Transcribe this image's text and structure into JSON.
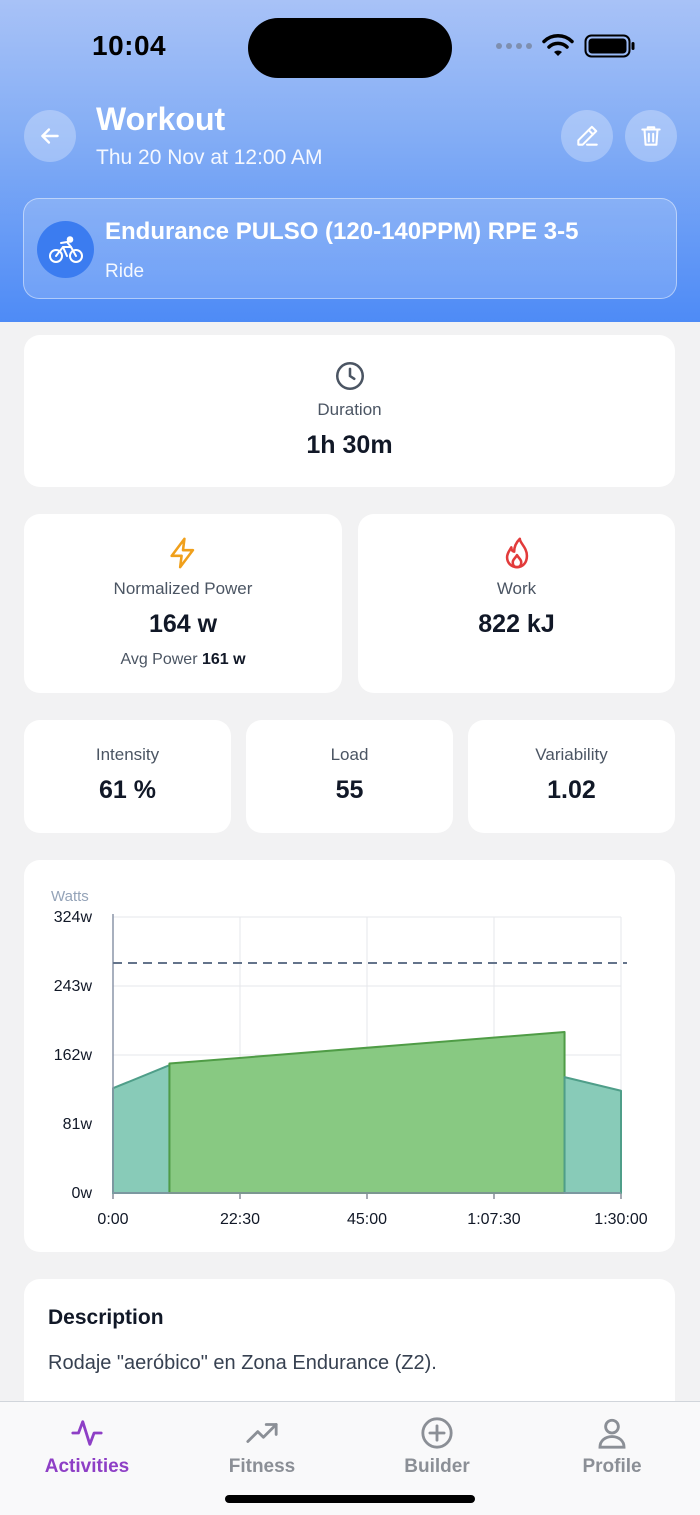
{
  "status_bar": {
    "time": "10:04"
  },
  "header": {
    "title": "Workout",
    "subtitle": "Thu 20 Nov at 12:00 AM"
  },
  "workout": {
    "name": "Endurance PULSO (120-140PPM) RPE 3-5",
    "type": "Ride"
  },
  "stats": {
    "duration": {
      "label": "Duration",
      "value": "1h 30m"
    },
    "normalized_power": {
      "label": "Normalized Power",
      "value": "164 w",
      "avg_label": "Avg Power",
      "avg_value": "161 w"
    },
    "work": {
      "label": "Work",
      "value": "822 kJ"
    },
    "intensity": {
      "label": "Intensity",
      "value": "61 %"
    },
    "load": {
      "label": "Load",
      "value": "55"
    },
    "variability": {
      "label": "Variability",
      "value": "1.02"
    }
  },
  "chart_data": {
    "type": "area",
    "ylabel": "Watts",
    "y_ticks": [
      "324w",
      "243w",
      "162w",
      "81w",
      "0w"
    ],
    "x_ticks": [
      "0:00",
      "22:30",
      "45:00",
      "1:07:30",
      "1:30:00"
    ],
    "ylim": [
      0,
      324
    ],
    "xlim_minutes": [
      0,
      90
    ],
    "grid": true,
    "threshold_line_watts": 270,
    "segments": [
      {
        "start_min": 0,
        "end_min": 10,
        "start_watts": 123,
        "end_watts": 150,
        "color": "#88cbb8"
      },
      {
        "start_min": 10,
        "end_min": 80,
        "start_watts": 152,
        "end_watts": 189,
        "color": "#88c982"
      },
      {
        "start_min": 80,
        "end_min": 90,
        "start_watts": 136,
        "end_watts": 120,
        "color": "#88cbb8"
      }
    ]
  },
  "description": {
    "title": "Description",
    "text": "Rodaje \"aeróbico\" en Zona Endurance (Z2)."
  },
  "tabs": [
    {
      "label": "Activities",
      "icon": "activity-icon",
      "active": true
    },
    {
      "label": "Fitness",
      "icon": "trending-up-icon",
      "active": false
    },
    {
      "label": "Builder",
      "icon": "plus-circle-icon",
      "active": false
    },
    {
      "label": "Profile",
      "icon": "user-icon",
      "active": false
    }
  ],
  "colors": {
    "accent": "#8e3fc6",
    "header_blue": "#4e8bf6",
    "main_segment": "#88c982",
    "ramp_segment": "#88cbb8"
  }
}
